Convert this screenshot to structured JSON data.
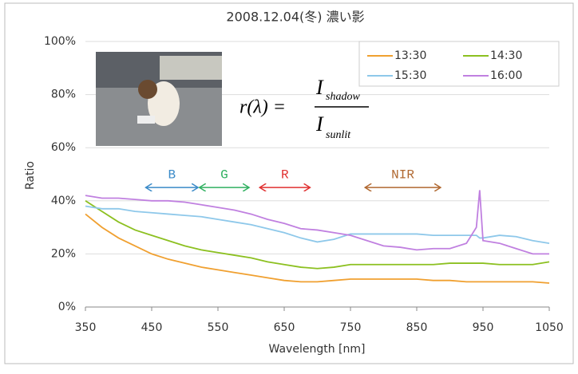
{
  "chart_data": {
    "type": "line",
    "title": "2008.12.04(冬) 濃い影",
    "xlabel": "Wavelength [nm]",
    "ylabel": "Ratio",
    "x": [
      350,
      375,
      400,
      425,
      450,
      475,
      500,
      525,
      550,
      575,
      600,
      625,
      650,
      675,
      700,
      725,
      750,
      775,
      800,
      825,
      850,
      875,
      900,
      925,
      940,
      945,
      950,
      975,
      1000,
      1025,
      1050
    ],
    "series": [
      {
        "name": "13:30",
        "color": "#f0a030",
        "values": [
          35,
          30,
          26,
          23,
          20,
          18,
          16.5,
          15,
          14,
          13,
          12,
          11,
          10,
          9.5,
          9.5,
          10,
          10.5,
          10.5,
          10.5,
          10.5,
          10.5,
          10,
          10,
          9.5,
          9.5,
          9.5,
          9.5,
          9.5,
          9.5,
          9.5,
          9
        ]
      },
      {
        "name": "14:30",
        "color": "#8cc020",
        "values": [
          40,
          36,
          32,
          29,
          27,
          25,
          23,
          21.5,
          20.5,
          19.5,
          18.5,
          17,
          16,
          15,
          14.5,
          15,
          16,
          16,
          16,
          16,
          16,
          16,
          16.5,
          16.5,
          16.5,
          16.5,
          16.5,
          16,
          16,
          16,
          17
        ]
      },
      {
        "name": "15:30",
        "color": "#8ec8ea",
        "values": [
          38,
          37,
          37,
          36,
          35.5,
          35,
          34.5,
          34,
          33,
          32,
          31,
          29.5,
          28,
          26,
          24.5,
          25.5,
          27.5,
          27.5,
          27.5,
          27.5,
          27.5,
          27,
          27,
          27,
          27,
          26,
          26,
          27,
          26.5,
          25,
          24
        ]
      },
      {
        "name": "16:00",
        "color": "#c080e0",
        "values": [
          42,
          41,
          41,
          40.5,
          40,
          40,
          39.5,
          38.5,
          37.5,
          36.5,
          35,
          33,
          31.5,
          29.5,
          29,
          28,
          27,
          25,
          23,
          22.5,
          21.5,
          22,
          22,
          24,
          30,
          44,
          25,
          24,
          22,
          20,
          20
        ]
      }
    ],
    "xlim": [
      350,
      1050
    ],
    "xticks": [
      350,
      450,
      550,
      650,
      750,
      850,
      950,
      1050
    ],
    "ylim": [
      0,
      100
    ],
    "yticks": [
      {
        "value": 0,
        "label": "0%"
      },
      {
        "value": 20,
        "label": "20%"
      },
      {
        "value": 40,
        "label": "40%"
      },
      {
        "value": 60,
        "label": "60%"
      },
      {
        "value": 80,
        "label": "80%"
      },
      {
        "value": 100,
        "label": "100%"
      }
    ],
    "grid": true,
    "legend": "top-right",
    "bands": [
      {
        "label": "B",
        "color": "#3a8ac8",
        "range": [
          441,
          520
        ],
        "y": 45
      },
      {
        "label": "G",
        "color": "#30b060",
        "range": [
          522,
          597
        ],
        "y": 45
      },
      {
        "label": "R",
        "color": "#e03030",
        "range": [
          613,
          689
        ],
        "y": 45
      },
      {
        "label": "NIR",
        "color": "#b06830",
        "range": [
          772,
          886
        ],
        "y": 45
      }
    ],
    "formula": {
      "lhs": "r(λ) =",
      "numerator": "I",
      "numerator_sub": "shadow",
      "denominator": "I",
      "denominator_sub": "sunlit"
    }
  }
}
